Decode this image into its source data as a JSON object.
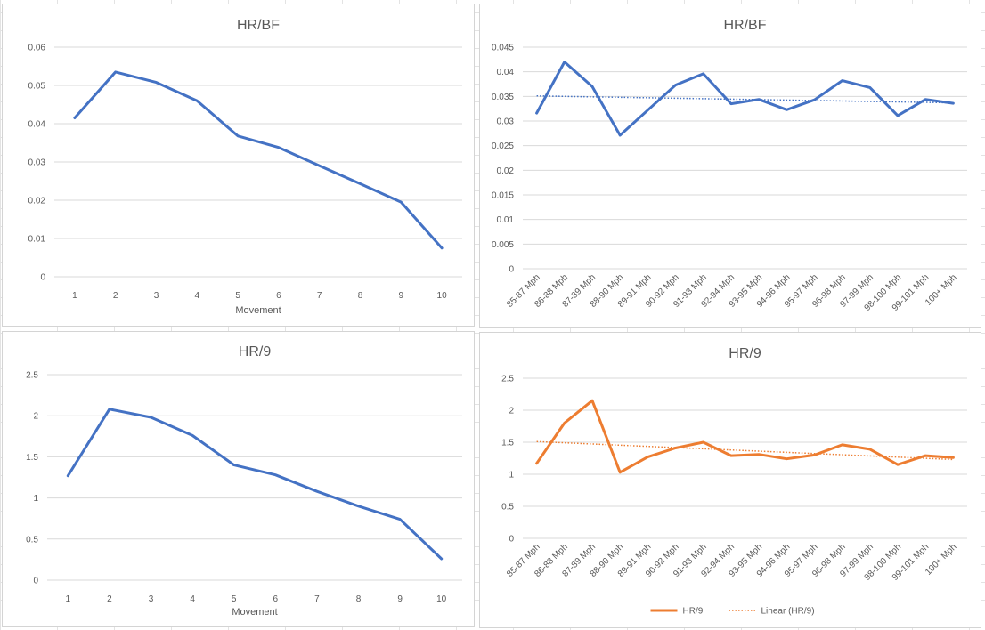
{
  "chart_data": [
    {
      "type": "line",
      "title": "HR/BF",
      "xlabel": "Movement",
      "ylabel": "",
      "categories": [
        "1",
        "2",
        "3",
        "4",
        "5",
        "6",
        "7",
        "8",
        "9",
        "10"
      ],
      "series": [
        {
          "values": [
            0.0415,
            0.0535,
            0.0508,
            0.046,
            0.0368,
            0.0338,
            0.029,
            0.0243,
            0.0195,
            0.0075
          ],
          "color": "#4472c4"
        }
      ],
      "ylim": [
        0,
        0.06
      ],
      "yticks": [
        "0",
        "0.01",
        "0.02",
        "0.03",
        "0.04",
        "0.05",
        "0.06"
      ],
      "grid": true,
      "legend": "none"
    },
    {
      "type": "line",
      "title": "HR/BF",
      "xlabel": "",
      "ylabel": "",
      "categories": [
        "85-87 Mph",
        "86-88 Mph",
        "87-89 Mph",
        "88-90 Mph",
        "89-91 Mph",
        "90-92 Mph",
        "91-93 Mph",
        "92-94 Mph",
        "93-95 Mph",
        "94-96 Mph",
        "95-97 Mph",
        "96-98 Mph",
        "97-99 Mph",
        "98-100 Mph",
        "99-101 Mph",
        "100+ Mph"
      ],
      "series": [
        {
          "values": [
            0.0316,
            0.042,
            0.037,
            0.0271,
            0.0322,
            0.0373,
            0.0396,
            0.0335,
            0.0344,
            0.0323,
            0.0343,
            0.0382,
            0.0368,
            0.0311,
            0.0344,
            0.0336
          ],
          "color": "#4472c4"
        }
      ],
      "trendline": {
        "values": [
          0.0351,
          0.0337
        ],
        "color": "#4472c4",
        "style": "dotted"
      },
      "ylim": [
        0,
        0.045
      ],
      "yticks": [
        "0",
        "0.005",
        "0.01",
        "0.015",
        "0.02",
        "0.025",
        "0.03",
        "0.035",
        "0.04",
        "0.045"
      ],
      "grid": true,
      "legend": "none"
    },
    {
      "type": "line",
      "title": "HR/9",
      "xlabel": "Movement",
      "ylabel": "",
      "categories": [
        "1",
        "2",
        "3",
        "4",
        "5",
        "6",
        "7",
        "8",
        "9",
        "10"
      ],
      "series": [
        {
          "values": [
            1.27,
            2.08,
            1.98,
            1.76,
            1.4,
            1.28,
            1.08,
            0.9,
            0.74,
            0.26
          ],
          "color": "#4472c4"
        }
      ],
      "ylim": [
        0,
        2.5
      ],
      "yticks": [
        "0",
        "0.5",
        "1",
        "1.5",
        "2",
        "2.5"
      ],
      "grid": true,
      "legend": "none"
    },
    {
      "type": "line",
      "title": "HR/9",
      "xlabel": "",
      "ylabel": "",
      "categories": [
        "85-87 Mph",
        "86-88 Mph",
        "87-89 Mph",
        "88-90 Mph",
        "89-91 Mph",
        "90-92 Mph",
        "91-93 Mph",
        "92-94 Mph",
        "93-95 Mph",
        "94-96 Mph",
        "95-97 Mph",
        "96-98 Mph",
        "97-99 Mph",
        "98-100 Mph",
        "99-101 Mph",
        "100+ Mph"
      ],
      "series": [
        {
          "name": "HR/9",
          "values": [
            1.17,
            1.8,
            2.15,
            1.03,
            1.27,
            1.41,
            1.5,
            1.29,
            1.31,
            1.24,
            1.3,
            1.46,
            1.39,
            1.15,
            1.29,
            1.26
          ],
          "color": "#ed7d31"
        }
      ],
      "trendline": {
        "name": "Linear (HR/9)",
        "values": [
          1.51,
          1.23
        ],
        "color": "#ed7d31",
        "style": "dotted"
      },
      "ylim": [
        0,
        2.5
      ],
      "yticks": [
        "0",
        "0.5",
        "1",
        "1.5",
        "2",
        "2.5"
      ],
      "grid": true,
      "legend": "bottom"
    }
  ]
}
